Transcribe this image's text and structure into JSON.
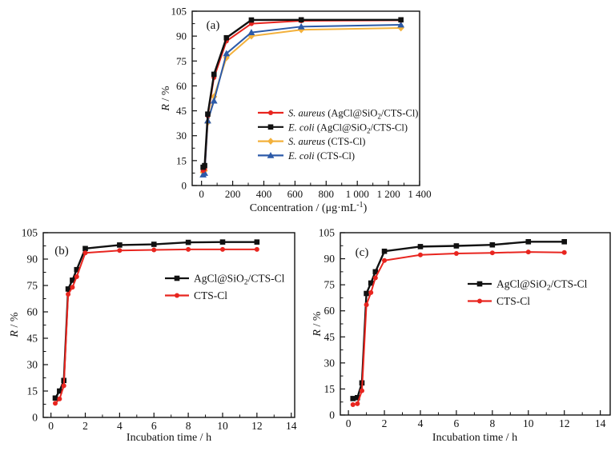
{
  "figure": {
    "background": "#ffffff",
    "ink_color": "#111111",
    "palette": {
      "red": "#e8251f",
      "black": "#111111",
      "yellow": "#f3b13c",
      "blue": "#2c5aa8"
    }
  },
  "chart_data": [
    {
      "id": "a",
      "type": "line",
      "panel_label": "(a)",
      "xlabel_parts": [
        {
          "t": "Concentration / (μg·mL"
        },
        {
          "t": "-1",
          "sup": true
        },
        {
          "t": ")"
        }
      ],
      "ylabel_parts": [
        {
          "t": "R",
          "i": true
        },
        {
          "t": " / %"
        }
      ],
      "xlim": [
        -60,
        1400
      ],
      "ylim": [
        0,
        105
      ],
      "grid": false,
      "legend_position": "inside-right-middle",
      "xticks": {
        "values": [
          0,
          200,
          400,
          600,
          800,
          1000,
          1200,
          1400
        ],
        "labels": [
          "0",
          "200",
          "400",
          "600",
          "800",
          "1 000",
          "1 200",
          "1 400"
        ],
        "minor_step": 100
      },
      "yticks": {
        "values": [
          0,
          15,
          30,
          45,
          60,
          75,
          90,
          105
        ],
        "labels": [
          "0",
          "15",
          "30",
          "45",
          "60",
          "75",
          "90",
          "105"
        ],
        "minor_step": 7.5
      },
      "series": [
        {
          "name": "s-aureus-agcl-sio2-cts-cl",
          "color": "#e8251f",
          "marker": "circle",
          "line_width": 2,
          "label_parts": [
            {
              "t": "S. aureus",
              "i": true
            },
            {
              "t": " (AgCl@SiO"
            },
            {
              "t": "2",
              "sub": true
            },
            {
              "t": "/CTS-Cl)"
            }
          ],
          "x": [
            10,
            20,
            40,
            80,
            160,
            320,
            640,
            1280
          ],
          "y": [
            9,
            10,
            42,
            65,
            87,
            97.5,
            99.2,
            99.5
          ]
        },
        {
          "name": "e-coli-agcl-sio2-cts-cl",
          "color": "#111111",
          "marker": "square",
          "line_width": 2.4,
          "label_parts": [
            {
              "t": "E. coli",
              "i": true
            },
            {
              "t": " (AgCl@SiO"
            },
            {
              "t": "2",
              "sub": true
            },
            {
              "t": "/CTS-Cl)"
            }
          ],
          "x": [
            10,
            20,
            40,
            80,
            160,
            320,
            640,
            1280
          ],
          "y": [
            11,
            12,
            43,
            67,
            89,
            99.7,
            99.8,
            99.8
          ]
        },
        {
          "name": "s-aureus-cts-cl",
          "color": "#f3b13c",
          "marker": "diamond",
          "line_width": 2,
          "label_parts": [
            {
              "t": "S. aureus",
              "i": true
            },
            {
              "t": " (CTS-Cl)"
            }
          ],
          "x": [
            10,
            20,
            40,
            80,
            160,
            320,
            640,
            1280
          ],
          "y": [
            8,
            9,
            38,
            53.5,
            77,
            90,
            93.8,
            94.9
          ]
        },
        {
          "name": "e-coli-cts-cl",
          "color": "#2c5aa8",
          "marker": "triangle",
          "line_width": 2,
          "label_parts": [
            {
              "t": "E. coli",
              "i": true
            },
            {
              "t": " (CTS-Cl)"
            }
          ],
          "x": [
            10,
            20,
            40,
            80,
            160,
            320,
            640,
            1280
          ],
          "y": [
            6.5,
            7.5,
            39,
            51,
            79.5,
            92.2,
            95.7,
            96.8
          ]
        }
      ]
    },
    {
      "id": "b",
      "type": "line",
      "panel_label": "(b)",
      "xlabel_parts": [
        {
          "t": "Incubation time / h"
        }
      ],
      "ylabel_parts": [
        {
          "t": "R",
          "i": true
        },
        {
          "t": " / %"
        }
      ],
      "xlim": [
        -0.45,
        14.2
      ],
      "ylim": [
        0,
        105
      ],
      "grid": false,
      "legend_position": "inside-right-upper",
      "xticks": {
        "values": [
          0,
          2,
          4,
          6,
          8,
          10,
          12,
          14
        ],
        "labels": [
          "0",
          "2",
          "4",
          "6",
          "8",
          "10",
          "12",
          "14"
        ],
        "minor_step": 1
      },
      "yticks": {
        "values": [
          0,
          15,
          30,
          45,
          60,
          75,
          90,
          105
        ],
        "labels": [
          "0",
          "15",
          "30",
          "45",
          "60",
          "75",
          "90",
          "105"
        ],
        "minor_step": 7.5
      },
      "series": [
        {
          "name": "agcl-sio2-cts-cl",
          "color": "#111111",
          "marker": "square",
          "line_width": 2.4,
          "label_parts": [
            {
              "t": "AgCl@SiO"
            },
            {
              "t": "2",
              "sub": true
            },
            {
              "t": "/CTS-Cl"
            }
          ],
          "x": [
            0.25,
            0.5,
            0.75,
            1,
            1.25,
            1.5,
            2,
            4,
            6,
            8,
            10,
            12
          ],
          "y": [
            11,
            15,
            21,
            73,
            78,
            84,
            96,
            98,
            98.4,
            99.5,
            99.7,
            99.7
          ]
        },
        {
          "name": "cts-cl",
          "color": "#e8251f",
          "marker": "circle",
          "line_width": 2,
          "label_parts": [
            {
              "t": "CTS-Cl"
            }
          ],
          "x": [
            0.25,
            0.5,
            0.75,
            1,
            1.25,
            1.5,
            2,
            4,
            6,
            8,
            10,
            12
          ],
          "y": [
            8,
            10.5,
            18,
            70,
            74,
            80,
            93.5,
            94.9,
            95.2,
            95.5,
            95.5,
            95.5
          ]
        }
      ]
    },
    {
      "id": "c",
      "type": "line",
      "panel_label": "(c)",
      "xlabel_parts": [
        {
          "t": "Incubation time / h"
        }
      ],
      "ylabel_parts": [
        {
          "t": "R",
          "i": true
        },
        {
          "t": " / %"
        }
      ],
      "xlim": [
        -0.45,
        14.55
      ],
      "ylim": [
        0,
        105
      ],
      "grid": false,
      "legend_position": "inside-right-upper",
      "xticks": {
        "values": [
          0,
          2,
          4,
          6,
          8,
          10,
          12,
          14
        ],
        "labels": [
          "0",
          "2",
          "4",
          "6",
          "8",
          "10",
          "12",
          "14"
        ],
        "minor_step": 1
      },
      "yticks": {
        "values": [
          0,
          15,
          30,
          45,
          60,
          75,
          90,
          105
        ],
        "labels": [
          "0",
          "15",
          "30",
          "45",
          "60",
          "75",
          "90",
          "105"
        ],
        "minor_step": 7.5
      },
      "series": [
        {
          "name": "agcl-sio2-cts-cl",
          "color": "#111111",
          "marker": "square",
          "line_width": 2.4,
          "label_parts": [
            {
              "t": "AgCl@SiO"
            },
            {
              "t": "2",
              "sub": true
            },
            {
              "t": "/CTS-Cl"
            }
          ],
          "x": [
            0.25,
            0.5,
            0.75,
            1,
            1.25,
            1.5,
            2,
            4,
            6,
            8,
            10,
            12
          ],
          "y": [
            9.5,
            10,
            18.5,
            70,
            76,
            82.5,
            94.3,
            97,
            97.4,
            98,
            99.8,
            99.8
          ]
        },
        {
          "name": "cts-cl",
          "color": "#e8251f",
          "marker": "circle",
          "line_width": 2,
          "label_parts": [
            {
              "t": "CTS-Cl"
            }
          ],
          "x": [
            0.25,
            0.5,
            0.75,
            1,
            1.25,
            1.5,
            2,
            4,
            6,
            8,
            10,
            12
          ],
          "y": [
            6,
            6.5,
            14,
            63.5,
            70.5,
            79,
            89,
            92.2,
            93,
            93.4,
            93.9,
            93.6
          ]
        }
      ]
    }
  ]
}
